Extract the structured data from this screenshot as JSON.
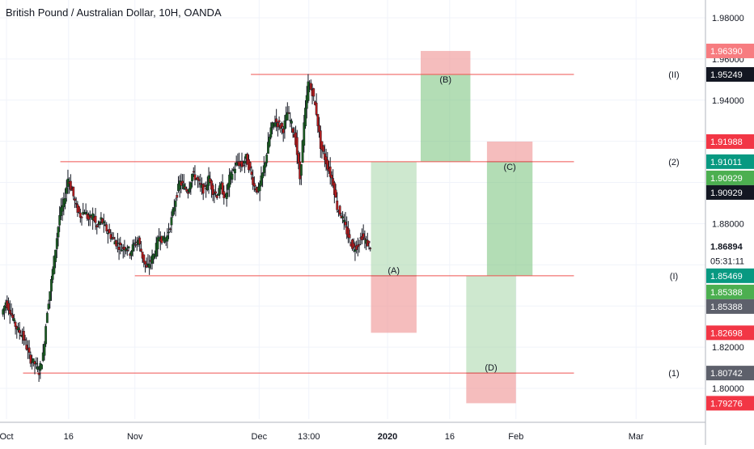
{
  "header": {
    "title": "British Pound / Australian Dollar, 10H, OANDA"
  },
  "colors": {
    "up": "#26a69a",
    "up_body": "#1b5e20",
    "down": "#b71c1c",
    "wick": "#131722",
    "level_line": "#ef5350",
    "profit_fill": "#a5d6a7",
    "profit_fill_dark": "#81c784",
    "loss_fill": "#ef9a9a",
    "grid": "#f0f3fa",
    "axis_text": "#131722",
    "badge_red": "#f23645",
    "badge_red_light": "#f77c80",
    "badge_green": "#089981",
    "badge_green_light": "#4caf50",
    "badge_dark": "#131722",
    "badge_gray": "#5d606b"
  },
  "chart_data": {
    "type": "candlestick",
    "title": "British Pound / Australian Dollar, 10H, OANDA",
    "ylim": [
      1.785,
      2.0
    ],
    "grid": true,
    "y_ticks": [
      "1.98000",
      "1.96000",
      "1.94000",
      "1.88000",
      "1.82000",
      "1.80000"
    ],
    "x_ticks": [
      {
        "label": "Oct",
        "x": 0
      },
      {
        "label": "16",
        "x": 15
      },
      {
        "label": "Nov",
        "x": 31
      },
      {
        "label": "Dec",
        "x": 61
      },
      {
        "label": "13:00",
        "x": 73
      },
      {
        "label": "2020",
        "x": 92
      },
      {
        "label": "16",
        "x": 107
      },
      {
        "label": "Feb",
        "x": 123
      },
      {
        "label": "Mar",
        "x": 152
      }
    ],
    "series_close_path": [
      [
        -1,
        1.836
      ],
      [
        0,
        1.842
      ],
      [
        1,
        1.838
      ],
      [
        2,
        1.832
      ],
      [
        3,
        1.828
      ],
      [
        4,
        1.826
      ],
      [
        5,
        1.82
      ],
      [
        6,
        1.814
      ],
      [
        7,
        1.812
      ],
      [
        8,
        1.808
      ],
      [
        9,
        1.816
      ],
      [
        10,
        1.838
      ],
      [
        11,
        1.852
      ],
      [
        12,
        1.868
      ],
      [
        13,
        1.884
      ],
      [
        14,
        1.89
      ],
      [
        15,
        1.902
      ],
      [
        16,
        1.896
      ],
      [
        17,
        1.888
      ],
      [
        18,
        1.884
      ],
      [
        19,
        1.886
      ],
      [
        20,
        1.882
      ],
      [
        21,
        1.884
      ],
      [
        22,
        1.878
      ],
      [
        23,
        1.882
      ],
      [
        24,
        1.878
      ],
      [
        25,
        1.875
      ],
      [
        26,
        1.872
      ],
      [
        27,
        1.87
      ],
      [
        28,
        1.868
      ],
      [
        29,
        1.869
      ],
      [
        30,
        1.866
      ],
      [
        31,
        1.87
      ],
      [
        32,
        1.872
      ],
      [
        33,
        1.864
      ],
      [
        34,
        1.858
      ],
      [
        35,
        1.862
      ],
      [
        36,
        1.866
      ],
      [
        37,
        1.874
      ],
      [
        38,
        1.872
      ],
      [
        39,
        1.874
      ],
      [
        40,
        1.882
      ],
      [
        41,
        1.892
      ],
      [
        42,
        1.9
      ],
      [
        43,
        1.898
      ],
      [
        44,
        1.896
      ],
      [
        45,
        1.904
      ],
      [
        46,
        1.902
      ],
      [
        47,
        1.898
      ],
      [
        48,
        1.896
      ],
      [
        49,
        1.902
      ],
      [
        50,
        1.896
      ],
      [
        51,
        1.894
      ],
      [
        52,
        1.898
      ],
      [
        53,
        1.892
      ],
      [
        54,
        1.902
      ],
      [
        55,
        1.906
      ],
      [
        56,
        1.91
      ],
      [
        57,
        1.908
      ],
      [
        58,
        1.912
      ],
      [
        59,
        1.906
      ],
      [
        60,
        1.898
      ],
      [
        61,
        1.896
      ],
      [
        62,
        1.904
      ],
      [
        63,
        1.914
      ],
      [
        64,
        1.926
      ],
      [
        65,
        1.93
      ],
      [
        66,
        1.928
      ],
      [
        67,
        1.926
      ],
      [
        68,
        1.934
      ],
      [
        69,
        1.928
      ],
      [
        70,
        1.92
      ],
      [
        71,
        1.902
      ],
      [
        72,
        1.928
      ],
      [
        73,
        1.948
      ],
      [
        74,
        1.944
      ],
      [
        75,
        1.934
      ],
      [
        76,
        1.918
      ],
      [
        77,
        1.912
      ],
      [
        78,
        1.906
      ],
      [
        79,
        1.9
      ],
      [
        80,
        1.888
      ],
      [
        81,
        1.884
      ],
      [
        82,
        1.878
      ],
      [
        83,
        1.872
      ],
      [
        84,
        1.868
      ],
      [
        85,
        1.87
      ],
      [
        86,
        1.874
      ],
      [
        87,
        1.871
      ],
      [
        88,
        1.869
      ]
    ],
    "horizontal_levels": [
      {
        "label": "(II)",
        "value": 1.95249,
        "x_start": 59,
        "x_end": 137
      },
      {
        "label": "(2)",
        "value": 1.91011,
        "x_start": 13,
        "x_end": 137
      },
      {
        "label": "(I)",
        "value": 1.85469,
        "x_start": 31,
        "x_end": 137
      },
      {
        "label": "(1)",
        "value": 1.80742,
        "x_start": 4,
        "x_end": 137
      }
    ],
    "positions": [
      {
        "label": "(A)",
        "type": "long",
        "x_start": 88,
        "x_end": 99,
        "entry": 1.85469,
        "target": 1.91011,
        "stop": 1.82698
      },
      {
        "label": "(B)",
        "type": "long",
        "x_start": 100,
        "x_end": 112,
        "entry": 1.95249,
        "target": 1.91011,
        "stop": 1.9639
      },
      {
        "label": "(C)",
        "type": "long",
        "x_start": 116,
        "x_end": 127,
        "entry": 1.91011,
        "target": 1.85469,
        "stop": 1.91988
      },
      {
        "label": "(D)",
        "type": "long",
        "x_start": 111,
        "x_end": 123,
        "entry": 1.80742,
        "target": 1.85469,
        "stop": 1.79276
      }
    ],
    "price_badges": [
      {
        "text": "1.96390",
        "value": 1.9639,
        "style": "red_light"
      },
      {
        "text": "1.95249",
        "value": 1.95249,
        "style": "dark"
      },
      {
        "text": "1.91988",
        "value": 1.91988,
        "style": "red"
      },
      {
        "text": "1.91011",
        "value": 1.91011,
        "style": "green"
      },
      {
        "text": "1.90929",
        "value": 1.90929,
        "style": "green_light",
        "offset": 1
      },
      {
        "text": "1.90929",
        "value": 1.90929,
        "style": "dark",
        "offset": 2
      },
      {
        "text": "1.86894",
        "value": 1.86894,
        "style": "plain_bold"
      },
      {
        "text": "05:31:11",
        "value": 1.86894,
        "style": "plain",
        "offset": 1
      },
      {
        "text": "1.85469",
        "value": 1.85469,
        "style": "green"
      },
      {
        "text": "1.85388",
        "value": 1.85388,
        "style": "green_light",
        "offset": 1
      },
      {
        "text": "1.85388",
        "value": 1.85388,
        "style": "gray",
        "offset": 2
      },
      {
        "text": "1.82698",
        "value": 1.82698,
        "style": "red"
      },
      {
        "text": "1.80742",
        "value": 1.80742,
        "style": "gray"
      },
      {
        "text": "1.79276",
        "value": 1.79276,
        "style": "red"
      }
    ]
  }
}
